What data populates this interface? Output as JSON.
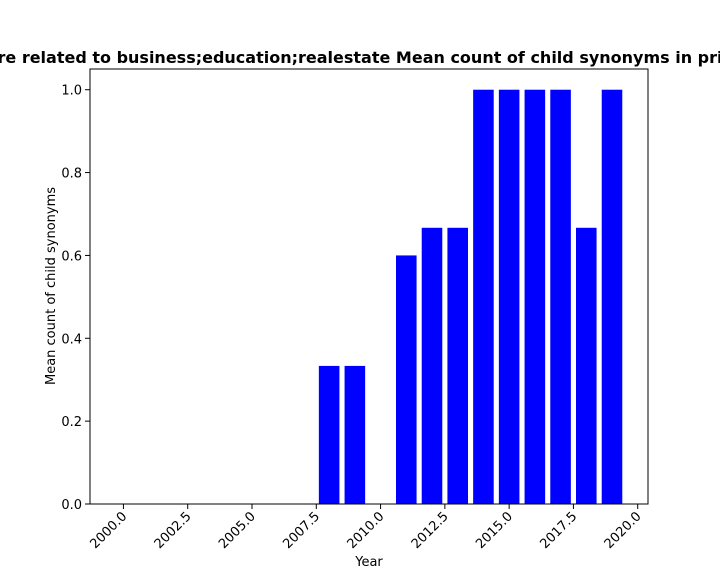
{
  "chart_data": {
    "type": "bar",
    "title": "re related to business;education;realestate Mean count of child synonyms in pri",
    "xlabel": "Year",
    "ylabel": "Mean count of child synonyms",
    "bar_color": "#0000ff",
    "x": [
      2008,
      2009,
      2010,
      2011,
      2012,
      2013,
      2014,
      2015,
      2016,
      2017,
      2018,
      2019
    ],
    "values": [
      0.3333,
      0.3333,
      0.0,
      0.6,
      0.6667,
      0.6667,
      1.0,
      1.0,
      1.0,
      1.0,
      0.6667,
      1.0
    ],
    "xlim": [
      1998.7,
      2020.4
    ],
    "ylim": [
      0,
      1.05
    ],
    "xticks": [
      2000.0,
      2002.5,
      2005.0,
      2007.5,
      2010.0,
      2012.5,
      2015.0,
      2017.5,
      2020.0
    ],
    "xtick_labels": [
      "2000.0",
      "2002.5",
      "2005.0",
      "2007.5",
      "2010.0",
      "2012.5",
      "2015.0",
      "2017.5",
      "2020.0"
    ],
    "yticks": [
      0.0,
      0.2,
      0.4,
      0.6,
      0.8,
      1.0
    ],
    "ytick_labels": [
      "0.0",
      "0.2",
      "0.4",
      "0.6",
      "0.8",
      "1.0"
    ],
    "grid": false,
    "legend": "none"
  }
}
